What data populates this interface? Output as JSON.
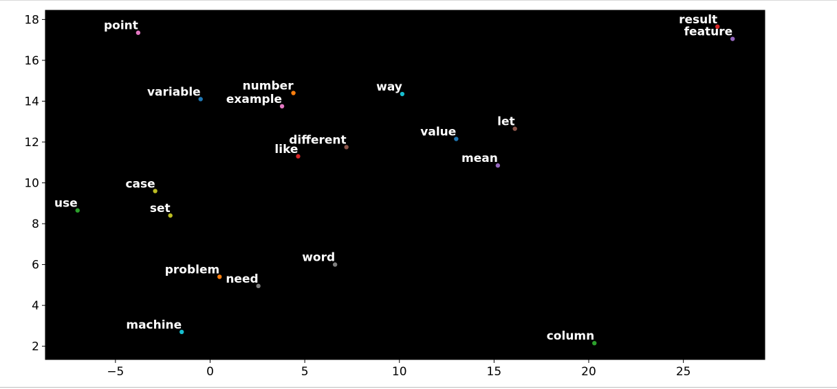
{
  "chart_data": {
    "type": "scatter",
    "title": "",
    "xlabel": "",
    "ylabel": "",
    "xlim": [
      -8.7,
      29.3
    ],
    "ylim": [
      1.35,
      18.45
    ],
    "xticks": [
      -5,
      0,
      5,
      10,
      15,
      20,
      25
    ],
    "yticks": [
      2,
      4,
      6,
      8,
      10,
      12,
      14,
      16,
      18
    ],
    "xtick_labels": [
      "−5",
      "0",
      "5",
      "10",
      "15",
      "20",
      "25"
    ],
    "ytick_labels": [
      "2",
      "4",
      "6",
      "8",
      "10",
      "12",
      "14",
      "16",
      "18"
    ],
    "grid": false,
    "legend": "none",
    "plot_background": "#000000",
    "label_color": "#ffffff",
    "points": [
      {
        "label": "point",
        "x": -3.8,
        "y": 17.35,
        "color": "#e377c2"
      },
      {
        "label": "variable",
        "x": -0.5,
        "y": 14.1,
        "color": "#1f77b4"
      },
      {
        "label": "number",
        "x": 4.4,
        "y": 14.4,
        "color": "#ff7f0e"
      },
      {
        "label": "example",
        "x": 3.8,
        "y": 13.75,
        "color": "#e377c2"
      },
      {
        "label": "way",
        "x": 10.15,
        "y": 14.35,
        "color": "#17becf"
      },
      {
        "label": "result",
        "x": 26.8,
        "y": 17.65,
        "color": "#d62728"
      },
      {
        "label": "feature",
        "x": 27.6,
        "y": 17.05,
        "color": "#9467bd"
      },
      {
        "label": "let",
        "x": 16.1,
        "y": 12.65,
        "color": "#8c564b"
      },
      {
        "label": "value",
        "x": 13.0,
        "y": 12.15,
        "color": "#1f77b4"
      },
      {
        "label": "different",
        "x": 7.2,
        "y": 11.75,
        "color": "#8c564b"
      },
      {
        "label": "like",
        "x": 4.65,
        "y": 11.3,
        "color": "#d62728"
      },
      {
        "label": "mean",
        "x": 15.2,
        "y": 10.85,
        "color": "#9467bd"
      },
      {
        "label": "case",
        "x": -2.9,
        "y": 9.6,
        "color": "#bcbd22"
      },
      {
        "label": "use",
        "x": -7.0,
        "y": 8.65,
        "color": "#2ca02c"
      },
      {
        "label": "set",
        "x": -2.1,
        "y": 8.4,
        "color": "#bcbd22"
      },
      {
        "label": "word",
        "x": 6.6,
        "y": 6.0,
        "color": "#7f7f7f"
      },
      {
        "label": "problem",
        "x": 0.5,
        "y": 5.4,
        "color": "#ff7f0e"
      },
      {
        "label": "need",
        "x": 2.55,
        "y": 4.95,
        "color": "#7f7f7f"
      },
      {
        "label": "machine",
        "x": -1.5,
        "y": 2.7,
        "color": "#17becf"
      },
      {
        "label": "column",
        "x": 20.3,
        "y": 2.15,
        "color": "#2ca02c"
      }
    ]
  }
}
